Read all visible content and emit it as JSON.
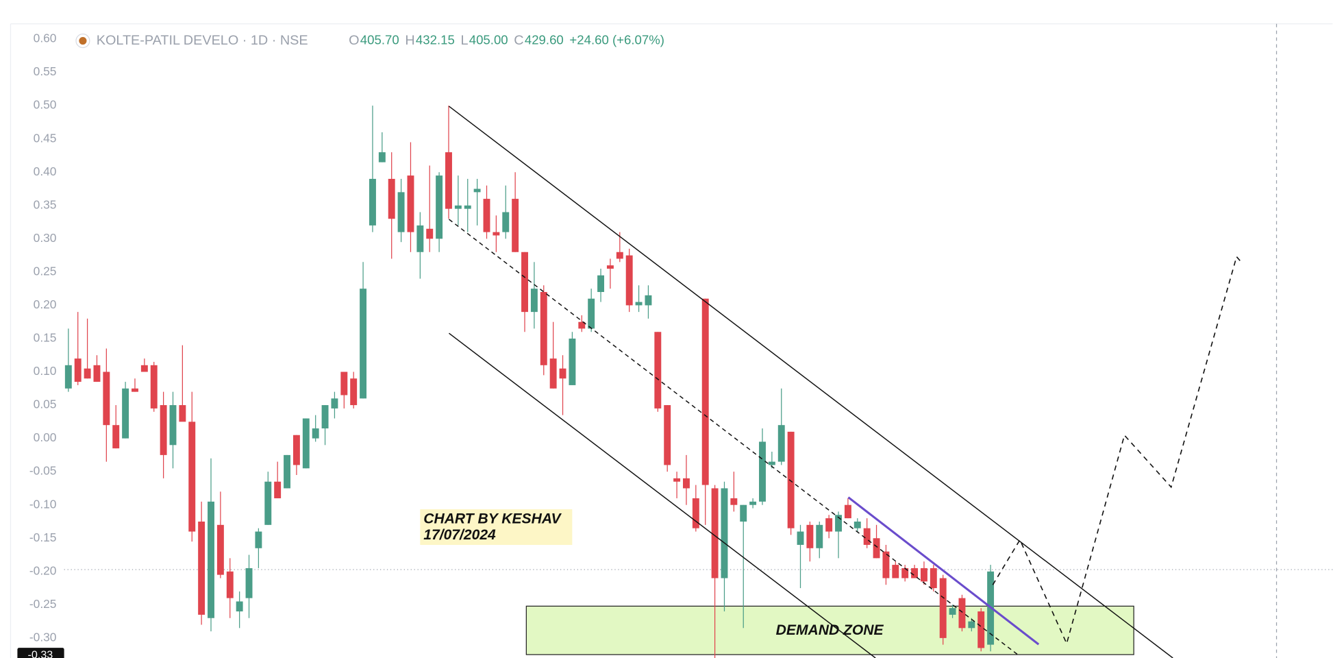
{
  "chart_data": {
    "type": "candlestick",
    "header": {
      "symbol": "KOLTE-PATIL DEVELO · 1D · NSE",
      "ohlc": [
        {
          "label": "O",
          "value": "405.70"
        },
        {
          "label": "H",
          "value": "432.15"
        },
        {
          "label": "L",
          "value": "405.00"
        },
        {
          "label": "C",
          "value": "429.60"
        }
      ],
      "change": "+24.60 (+6.07%)"
    },
    "annotations": {
      "credit": [
        "CHART BY KESHAV",
        "17/07/2024"
      ],
      "zone": "DEMAND ZONE",
      "price_label": "-0.33"
    },
    "up_color": "#4a9d88",
    "down_color": "#e0444d",
    "ylim": [
      -0.33,
      0.623
    ],
    "yticks": [
      {
        "value": 0.6,
        "label": "0.60"
      },
      0.55,
      {
        "value": 0.5,
        "label": "0.50"
      },
      0.45,
      {
        "value": 0.4,
        "label": "0.40"
      },
      0.35,
      {
        "value": 0.3,
        "label": "0.30"
      },
      0.25,
      {
        "value": 0.2,
        "label": "0.20"
      },
      0.15,
      {
        "value": 0.1,
        "label": "0.10"
      },
      0.05,
      {
        "value": 0,
        "label": "0.00"
      },
      -0.05,
      {
        "value": -0.1,
        "label": "-0.10"
      },
      -0.15,
      {
        "value": -0.2,
        "label": "-0.20"
      },
      -0.25,
      {
        "value": -0.3,
        "label": "-0.30"
      }
    ],
    "grid": false,
    "open": [
      0.075,
      0.12,
      0.105,
      0.11,
      0.1,
      0.02,
      0.0,
      0.075,
      0.11,
      0.11,
      0.05,
      -0.01,
      0.05,
      0.025,
      -0.125,
      -0.27,
      -0.13,
      -0.2,
      -0.26,
      -0.24,
      -0.165,
      -0.13,
      -0.065,
      -0.075,
      0.005,
      -0.045,
      0.0,
      0.015,
      0.045,
      0.1,
      0.09,
      0.06,
      0.32,
      0.415,
      0.39,
      0.31,
      0.395,
      0.28,
      0.315,
      0.3,
      0.43,
      0.345,
      0.345,
      0.37,
      0.36,
      0.31,
      0.31,
      0.36,
      0.28,
      0.19,
      0.22,
      0.12,
      0.105,
      0.08,
      0.175,
      0.165,
      0.22,
      0.26,
      0.28,
      0.275,
      0.2,
      0.2,
      0.16,
      0.05,
      -0.06,
      -0.06,
      -0.09,
      0.21,
      -0.075,
      -0.21,
      -0.09,
      -0.125,
      -0.1,
      -0.095,
      -0.04,
      -0.035,
      0.01,
      -0.16,
      -0.13,
      -0.165,
      -0.12,
      -0.14,
      -0.1,
      -0.135,
      -0.135,
      -0.15,
      -0.17,
      -0.19,
      -0.195,
      -0.195,
      -0.195,
      -0.195,
      -0.21,
      -0.265,
      -0.24,
      -0.285,
      -0.26,
      -0.31
    ],
    "high": [
      0.165,
      0.19,
      0.18,
      0.125,
      0.135,
      0.05,
      0.085,
      0.09,
      0.12,
      0.115,
      0.07,
      0.07,
      0.14,
      0.07,
      -0.095,
      -0.03,
      -0.08,
      -0.18,
      -0.23,
      -0.175,
      -0.135,
      -0.05,
      -0.035,
      -0.025,
      0.005,
      0.03,
      0.035,
      0.05,
      0.07,
      0.1,
      0.1,
      0.265,
      0.5,
      0.46,
      0.43,
      0.39,
      0.445,
      0.34,
      0.41,
      0.4,
      0.5,
      0.395,
      0.39,
      0.39,
      0.38,
      0.335,
      0.38,
      0.4,
      0.28,
      0.265,
      0.23,
      0.175,
      0.125,
      0.16,
      0.185,
      0.225,
      0.255,
      0.27,
      0.31,
      0.285,
      0.23,
      0.23,
      0.16,
      0.05,
      -0.05,
      -0.025,
      -0.07,
      0.21,
      -0.07,
      -0.065,
      -0.05,
      -0.1,
      -0.09,
      0.015,
      -0.02,
      0.075,
      0.01,
      -0.13,
      -0.125,
      -0.125,
      -0.115,
      -0.11,
      -0.09,
      -0.12,
      -0.12,
      -0.13,
      -0.16,
      -0.185,
      -0.19,
      -0.19,
      -0.185,
      -0.19,
      -0.205,
      -0.25,
      -0.235,
      -0.27,
      -0.255,
      -0.19
    ],
    "low": [
      0.07,
      0.08,
      0.09,
      0.085,
      -0.035,
      -0.015,
      0.0,
      0.07,
      0.1,
      0.04,
      -0.06,
      -0.045,
      0.03,
      -0.155,
      -0.28,
      -0.29,
      -0.21,
      -0.27,
      -0.285,
      -0.27,
      -0.195,
      -0.13,
      -0.09,
      -0.075,
      -0.055,
      -0.045,
      -0.005,
      -0.01,
      0.03,
      0.045,
      0.045,
      0.06,
      0.31,
      0.415,
      0.27,
      0.295,
      0.28,
      0.24,
      0.28,
      0.28,
      0.33,
      0.32,
      0.31,
      0.32,
      0.3,
      0.28,
      0.3,
      0.28,
      0.16,
      0.165,
      0.095,
      0.075,
      0.035,
      0.08,
      0.16,
      0.16,
      0.205,
      0.225,
      0.265,
      0.19,
      0.19,
      0.18,
      0.04,
      -0.05,
      -0.09,
      -0.1,
      -0.14,
      -0.13,
      -0.33,
      -0.26,
      -0.11,
      -0.285,
      -0.105,
      -0.1,
      -0.045,
      -0.04,
      -0.145,
      -0.225,
      -0.185,
      -0.18,
      -0.15,
      -0.18,
      -0.12,
      -0.14,
      -0.165,
      -0.18,
      -0.22,
      -0.21,
      -0.215,
      -0.21,
      -0.22,
      -0.23,
      -0.31,
      -0.27,
      -0.29,
      -0.29,
      -0.32,
      -0.32
    ],
    "close": [
      0.11,
      0.085,
      0.09,
      0.085,
      0.02,
      -0.015,
      0.075,
      0.07,
      0.1,
      0.045,
      -0.025,
      0.05,
      0.025,
      -0.14,
      -0.265,
      -0.095,
      -0.205,
      -0.24,
      -0.245,
      -0.195,
      -0.14,
      -0.065,
      -0.09,
      -0.025,
      -0.04,
      0.03,
      0.015,
      0.05,
      0.06,
      0.065,
      0.05,
      0.225,
      0.39,
      0.43,
      0.33,
      0.37,
      0.31,
      0.32,
      0.3,
      0.395,
      0.345,
      0.35,
      0.35,
      0.375,
      0.31,
      0.305,
      0.34,
      0.28,
      0.19,
      0.225,
      0.11,
      0.075,
      0.09,
      0.15,
      0.165,
      0.21,
      0.245,
      0.255,
      0.27,
      0.2,
      0.205,
      0.215,
      0.045,
      -0.04,
      -0.065,
      -0.075,
      -0.135,
      -0.07,
      -0.21,
      -0.075,
      -0.1,
      -0.1,
      -0.095,
      -0.005,
      -0.035,
      0.02,
      -0.135,
      -0.14,
      -0.165,
      -0.13,
      -0.14,
      -0.115,
      -0.12,
      -0.125,
      -0.16,
      -0.18,
      -0.21,
      -0.21,
      -0.21,
      -0.21,
      -0.215,
      -0.225,
      -0.3,
      -0.255,
      -0.285,
      -0.275,
      -0.315,
      -0.2
    ]
  }
}
